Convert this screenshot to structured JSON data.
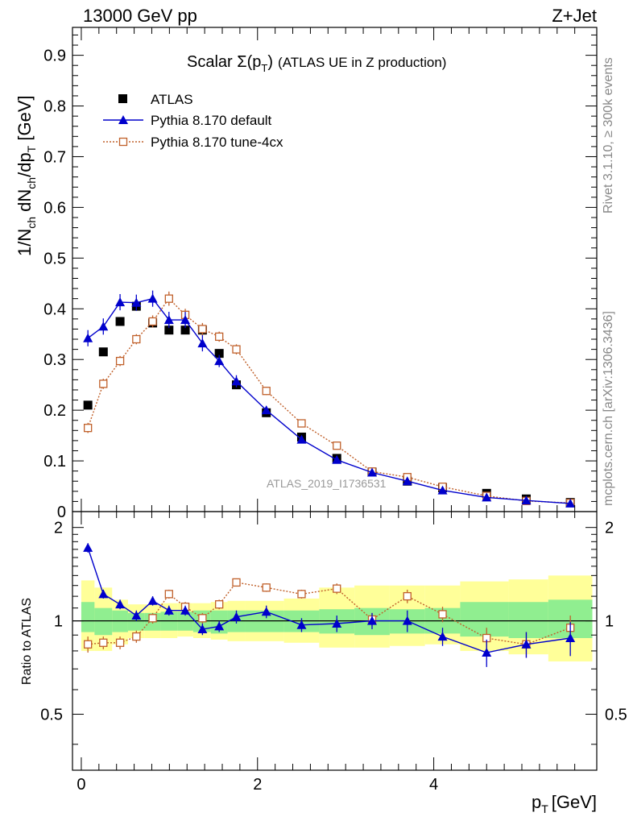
{
  "header": {
    "left": "13000 GeV pp",
    "right": "Z+Jet"
  },
  "side": {
    "top": "Rivet 3.1.10, ≥ 300k events",
    "bottom": "mcplots.cern.ch [arXiv:1306.3436]"
  },
  "colors": {
    "atlas": "#000000",
    "default": "#0000cc",
    "tune": "#c0602a",
    "band_inner": "#90ee90",
    "band_outer": "#ffff99"
  },
  "chart_data": [
    {
      "type": "scatter",
      "title": "Scalar Σ(p",
      "title_sub": "T",
      "title_end": ")",
      "title_paren": "(ATLAS UE in Z production)",
      "ylabel": "1/N",
      "ylabel_parts": [
        "1/N",
        "ch",
        " dN",
        "ch",
        "/dp",
        "T",
        " [GeV]"
      ],
      "xlabel": "p",
      "xlabel_sub": "T",
      "xlabel_unit": "[GeV]",
      "analysis_label": "ATLAS_2019_I1736531",
      "xlim": [
        -0.1,
        5.85
      ],
      "ylim": [
        0,
        0.955
      ],
      "x_ticks": [
        0,
        2,
        4
      ],
      "y_ticks": [
        0,
        0.1,
        0.2,
        0.3,
        0.4,
        0.5,
        0.6,
        0.7,
        0.8,
        0.9
      ],
      "y_tick_labels": [
        "0",
        "0.1",
        "0.2",
        "0.3",
        "0.4",
        "0.5",
        "0.6",
        "0.7",
        "0.8",
        "0.9"
      ],
      "x": [
        0.075,
        0.25,
        0.44,
        0.625,
        0.81,
        0.995,
        1.18,
        1.375,
        1.565,
        1.76,
        2.1,
        2.5,
        2.9,
        3.3,
        3.7,
        4.1,
        4.6,
        5.05,
        5.55
      ],
      "bin_edges": [
        0.0,
        0.15,
        0.35,
        0.53,
        0.72,
        0.9,
        1.09,
        1.27,
        1.47,
        1.66,
        1.86,
        2.3,
        2.7,
        3.1,
        3.5,
        3.9,
        4.3,
        4.85,
        5.3,
        5.8
      ],
      "legend": [
        "ATLAS",
        "Pythia 8.170 default",
        "Pythia 8.170 tune-4cx"
      ],
      "series": [
        {
          "name": "ATLAS",
          "marker": "square",
          "values": [
            0.21,
            0.315,
            0.375,
            0.405,
            0.372,
            0.358,
            0.358,
            0.358,
            0.312,
            0.25,
            0.195,
            0.147,
            0.105,
            0.078,
            0.06,
            0.047,
            0.036,
            0.025,
            0.018
          ]
        },
        {
          "name": "Pythia 8.170 default",
          "marker": "triangle",
          "values": [
            0.342,
            0.365,
            0.413,
            0.412,
            0.42,
            0.378,
            0.378,
            0.332,
            0.297,
            0.257,
            0.2,
            0.142,
            0.102,
            0.077,
            0.06,
            0.042,
            0.028,
            0.022,
            0.016
          ],
          "errors": [
            0.016,
            0.016,
            0.016,
            0.016,
            0.016,
            0.016,
            0.016,
            0.016,
            0.012,
            0.012,
            0.008,
            0.006,
            0.005,
            0.004,
            0.004,
            0.003,
            0.003,
            0.002,
            0.002
          ]
        },
        {
          "name": "Pythia 8.170 tune-4cx",
          "marker": "open-square",
          "values": [
            0.165,
            0.252,
            0.297,
            0.34,
            0.375,
            0.42,
            0.388,
            0.36,
            0.345,
            0.32,
            0.238,
            0.174,
            0.13,
            0.079,
            0.068,
            0.049,
            0.031,
            0.021,
            0.017
          ],
          "errors": [
            0.01,
            0.01,
            0.01,
            0.01,
            0.012,
            0.014,
            0.012,
            0.012,
            0.01,
            0.01,
            0.008,
            0.007,
            0.006,
            0.004,
            0.004,
            0.003,
            0.003,
            0.002,
            0.002
          ]
        }
      ]
    },
    {
      "type": "scatter",
      "title": "",
      "ylabel": "Ratio to ATLAS",
      "xlabel": "p",
      "ylim": [
        0.33,
        2.25
      ],
      "xlim": [
        -0.1,
        5.85
      ],
      "x_ticks": [
        0,
        2,
        4
      ],
      "x_tick_labels": [
        "0",
        "2",
        "4"
      ],
      "y_ticks": [
        0.5,
        1,
        2
      ],
      "y_tick_labels": [
        "0.5",
        "1",
        "2"
      ],
      "reference": 1.0,
      "band_inner": [
        [
          0.92,
          1.15
        ],
        [
          0.9,
          1.1
        ],
        [
          0.92,
          1.08
        ],
        [
          0.93,
          1.06
        ],
        [
          0.93,
          1.06
        ],
        [
          0.93,
          1.07
        ],
        [
          0.93,
          1.07
        ],
        [
          0.92,
          1.08
        ],
        [
          0.91,
          1.08
        ],
        [
          0.92,
          1.08
        ],
        [
          0.92,
          1.08
        ],
        [
          0.92,
          1.08
        ],
        [
          0.91,
          1.09
        ],
        [
          0.9,
          1.1
        ],
        [
          0.91,
          1.09
        ],
        [
          0.91,
          1.1
        ],
        [
          0.89,
          1.15
        ],
        [
          0.88,
          1.15
        ],
        [
          0.88,
          1.17
        ]
      ],
      "band_outer": [
        [
          0.8,
          1.35
        ],
        [
          0.8,
          1.28
        ],
        [
          0.84,
          1.17
        ],
        [
          0.88,
          1.13
        ],
        [
          0.88,
          1.13
        ],
        [
          0.88,
          1.14
        ],
        [
          0.89,
          1.14
        ],
        [
          0.88,
          1.14
        ],
        [
          0.87,
          1.15
        ],
        [
          0.86,
          1.16
        ],
        [
          0.86,
          1.16
        ],
        [
          0.85,
          1.18
        ],
        [
          0.82,
          1.28
        ],
        [
          0.82,
          1.3
        ],
        [
          0.83,
          1.3
        ],
        [
          0.84,
          1.3
        ],
        [
          0.8,
          1.34
        ],
        [
          0.78,
          1.36
        ],
        [
          0.74,
          1.4
        ]
      ],
      "series": [
        {
          "name": "Pythia 8.170 default",
          "marker": "triangle",
          "values": [
            1.72,
            1.22,
            1.13,
            1.04,
            1.16,
            1.08,
            1.08,
            0.94,
            0.96,
            1.03,
            1.07,
            0.97,
            0.98,
            1.0,
            1.0,
            0.89,
            0.79,
            0.84,
            0.88
          ],
          "errors": [
            0.06,
            0.04,
            0.04,
            0.04,
            0.04,
            0.04,
            0.04,
            0.04,
            0.04,
            0.05,
            0.05,
            0.05,
            0.06,
            0.06,
            0.08,
            0.06,
            0.08,
            0.08,
            0.11
          ]
        },
        {
          "name": "Pythia 8.170 tune-4cx",
          "marker": "open-square",
          "values": [
            0.84,
            0.85,
            0.85,
            0.89,
            1.02,
            1.22,
            1.11,
            1.02,
            1.13,
            1.33,
            1.28,
            1.22,
            1.27,
            1.01,
            1.2,
            1.05,
            0.88,
            0.84,
            0.95
          ],
          "errors": [
            0.05,
            0.04,
            0.04,
            0.04,
            0.04,
            0.04,
            0.04,
            0.04,
            0.04,
            0.04,
            0.04,
            0.04,
            0.05,
            0.05,
            0.06,
            0.06,
            0.07,
            0.08,
            0.09
          ]
        }
      ]
    }
  ]
}
